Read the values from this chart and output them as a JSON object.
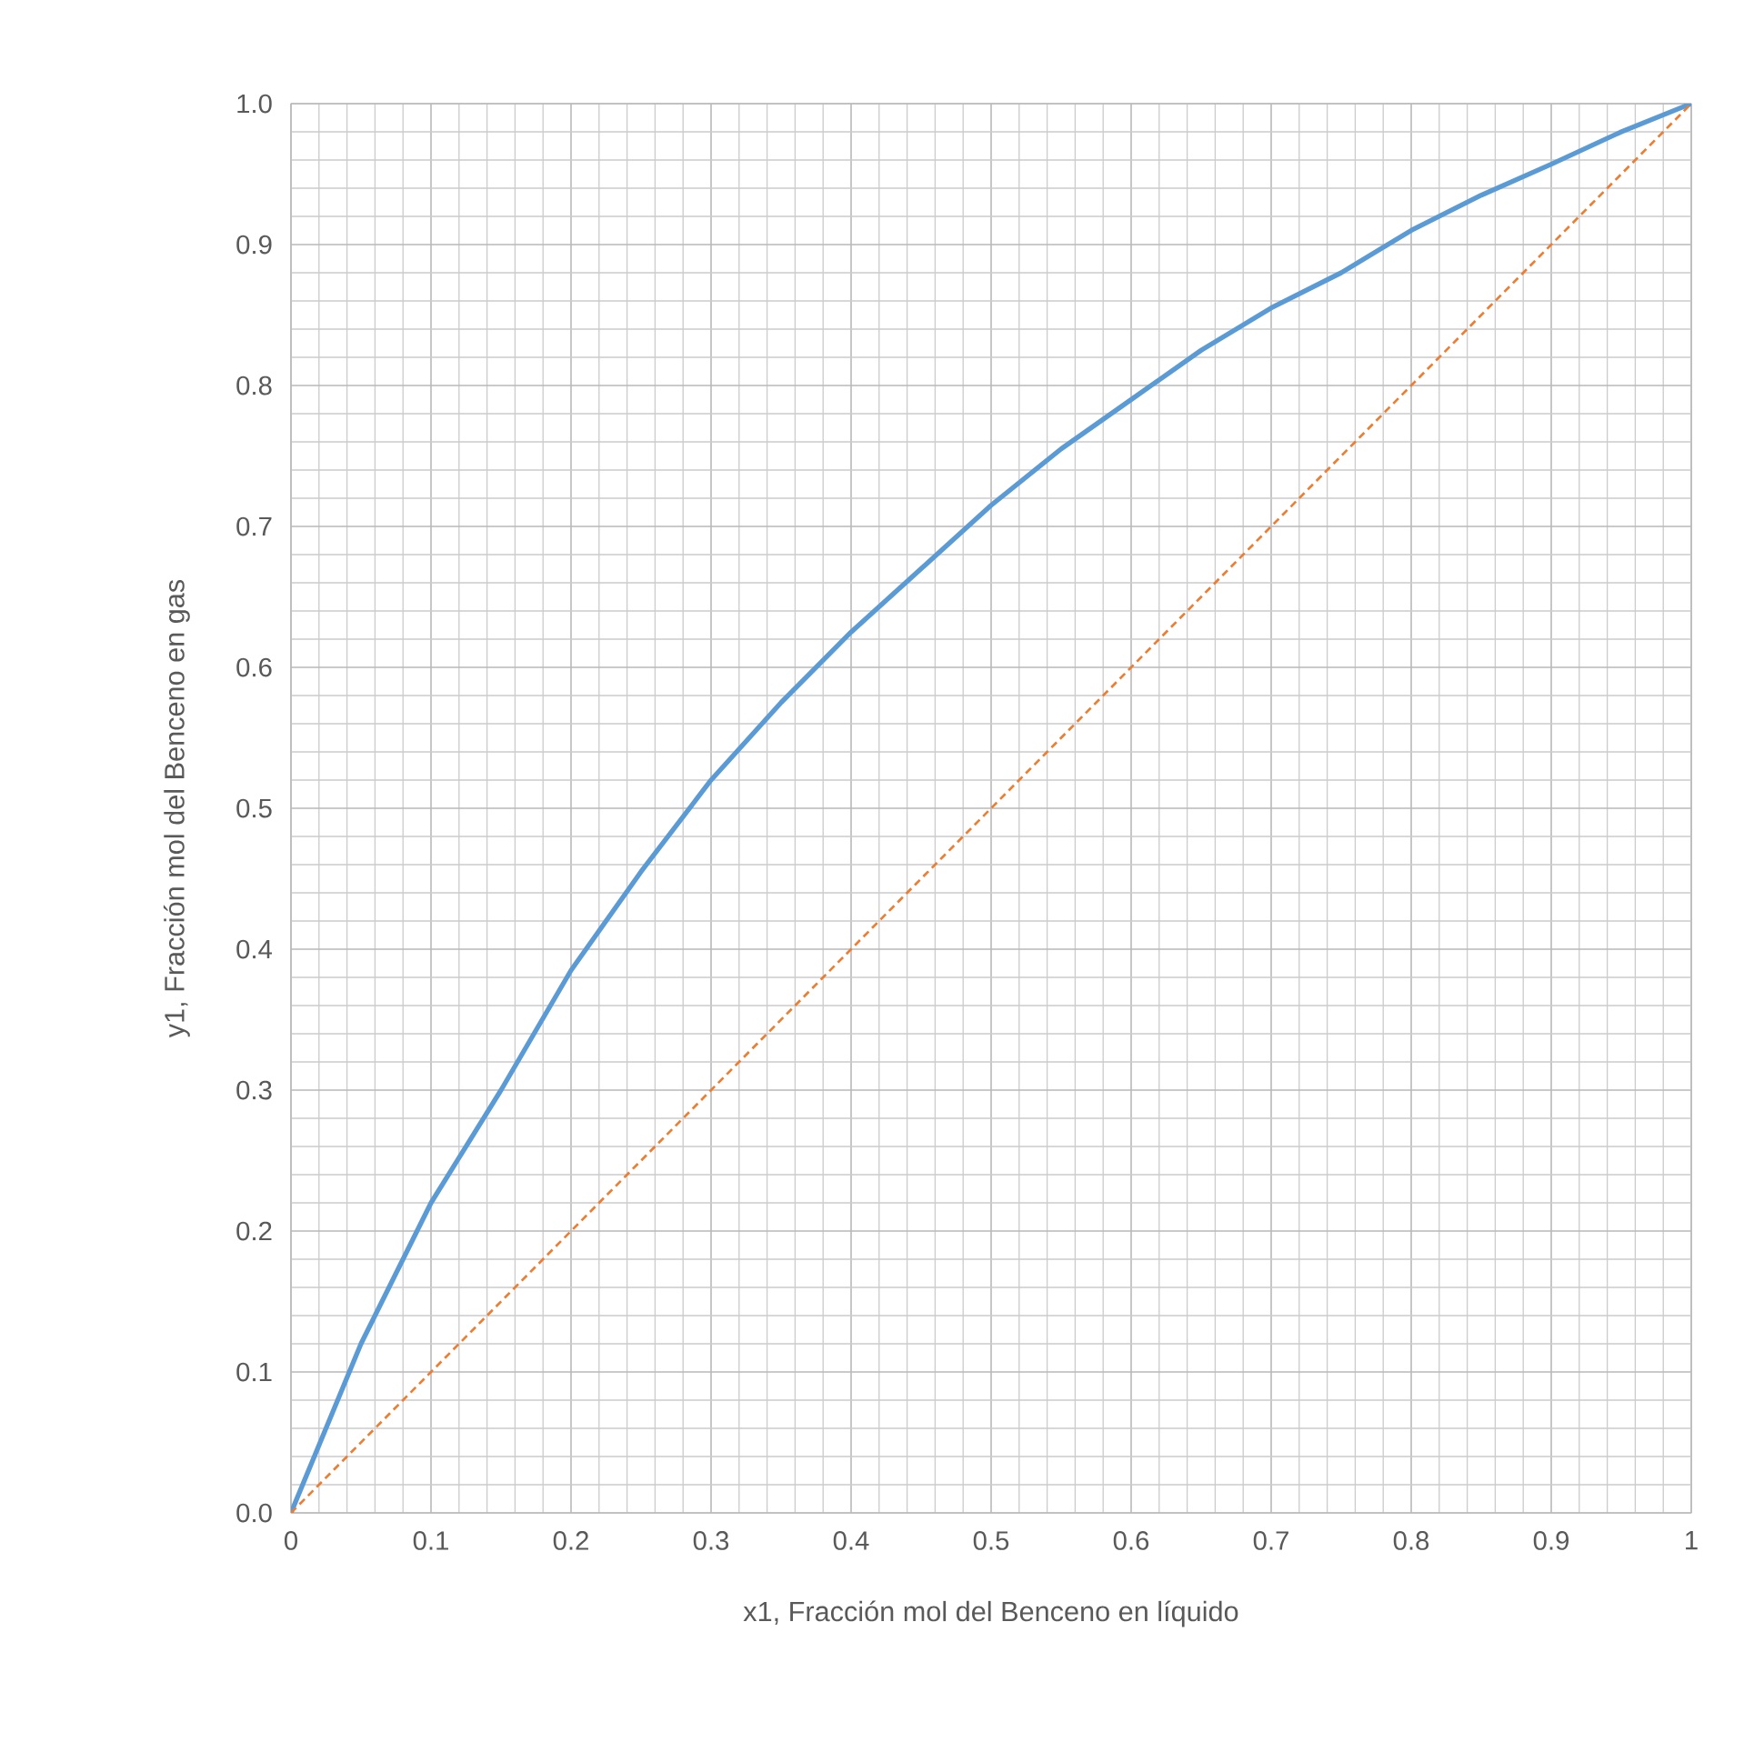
{
  "chart_data": {
    "type": "line",
    "xlabel": "x1, Fracción mol del Benceno en líquido",
    "ylabel": "y1, Fracción mol del Benceno en gas",
    "xlim": [
      0,
      1
    ],
    "ylim": [
      0,
      1
    ],
    "xticks": [
      0,
      0.1,
      0.2,
      0.3,
      0.4,
      0.5,
      0.6,
      0.7,
      0.8,
      0.9,
      1
    ],
    "yticks": [
      {
        "value": 0,
        "label": "0.0"
      },
      0.1,
      0.2,
      0.3,
      0.4,
      0.5,
      0.6,
      0.7,
      0.8,
      0.9,
      {
        "value": 1,
        "label": "1.0"
      }
    ],
    "grid": true,
    "series": [
      {
        "color": "#5b9bd5",
        "line_style": "solid",
        "x": [
          0,
          0.05,
          0.1,
          0.15,
          0.2,
          0.25,
          0.3,
          0.35,
          0.4,
          0.45,
          0.5,
          0.55,
          0.6,
          0.65,
          0.7,
          0.75,
          0.8,
          0.85,
          0.9,
          0.95,
          1
        ],
        "values": [
          0,
          0.12,
          0.22,
          0.3,
          0.385,
          0.455,
          0.52,
          0.575,
          0.625,
          0.67,
          0.715,
          0.755,
          0.79,
          0.825,
          0.855,
          0.88,
          0.91,
          0.935,
          0.957,
          0.98,
          1
        ]
      },
      {
        "color": "#ed7d31",
        "line_style": "dashed",
        "x": [
          0,
          1
        ],
        "values": [
          0,
          1
        ]
      }
    ]
  }
}
